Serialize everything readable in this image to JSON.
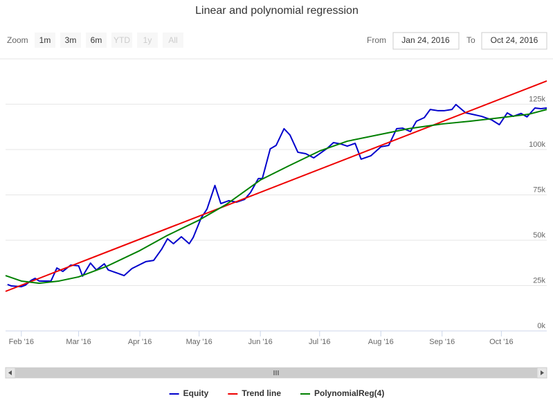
{
  "chart_data": {
    "type": "line",
    "title": "Linear and polynomial regression",
    "zoom_label": "Zoom",
    "zoom_buttons": [
      "1m",
      "3m",
      "6m",
      "YTD",
      "1y",
      "All"
    ],
    "from_label": "From",
    "from": "Jan 24, 2016",
    "to_label": "To",
    "to": "Oct 24, 2016",
    "xlim": [
      "2016-01-24",
      "2016-10-24"
    ],
    "xticks": [
      {
        "value": "2016-02-01",
        "label": "Feb '16"
      },
      {
        "value": "2016-03-01",
        "label": "Mar '16"
      },
      {
        "value": "2016-04-01",
        "label": "Apr '16"
      },
      {
        "value": "2016-05-01",
        "label": "May '16"
      },
      {
        "value": "2016-06-01",
        "label": "Jun '16"
      },
      {
        "value": "2016-07-01",
        "label": "Jul '16"
      },
      {
        "value": "2016-08-01",
        "label": "Aug '16"
      },
      {
        "value": "2016-09-01",
        "label": "Sep '16"
      },
      {
        "value": "2016-10-01",
        "label": "Oct '16"
      }
    ],
    "ylim": [
      0,
      150000
    ],
    "yticks": [
      {
        "value": 0,
        "label": "0k"
      },
      {
        "value": 25000,
        "label": "25k"
      },
      {
        "value": 50000,
        "label": "50k"
      },
      {
        "value": 75000,
        "label": "75k"
      },
      {
        "value": 100000,
        "label": "100k"
      },
      {
        "value": 125000,
        "label": "125k"
      }
    ],
    "grid": true,
    "legend": "bottom",
    "series": [
      {
        "name": "Equity",
        "color": "#0000cc",
        "x": [
          "2016-01-25",
          "2016-01-27",
          "2016-02-01",
          "2016-02-03",
          "2016-02-06",
          "2016-02-08",
          "2016-02-10",
          "2016-02-16",
          "2016-02-19",
          "2016-02-22",
          "2016-02-26",
          "2016-03-01",
          "2016-03-03",
          "2016-03-07",
          "2016-03-10",
          "2016-03-14",
          "2016-03-16",
          "2016-03-21",
          "2016-03-24",
          "2016-03-28",
          "2016-04-04",
          "2016-04-08",
          "2016-04-12",
          "2016-04-15",
          "2016-04-18",
          "2016-04-22",
          "2016-04-26",
          "2016-04-28",
          "2016-05-02",
          "2016-05-05",
          "2016-05-09",
          "2016-05-12",
          "2016-05-16",
          "2016-05-20",
          "2016-05-24",
          "2016-05-27",
          "2016-05-31",
          "2016-06-02",
          "2016-06-06",
          "2016-06-09",
          "2016-06-13",
          "2016-06-16",
          "2016-06-20",
          "2016-06-24",
          "2016-06-28",
          "2016-07-01",
          "2016-07-05",
          "2016-07-08",
          "2016-07-12",
          "2016-07-15",
          "2016-07-19",
          "2016-07-22",
          "2016-07-27",
          "2016-08-01",
          "2016-08-05",
          "2016-08-09",
          "2016-08-12",
          "2016-08-16",
          "2016-08-19",
          "2016-08-23",
          "2016-08-26",
          "2016-08-30",
          "2016-09-02",
          "2016-09-06",
          "2016-09-08",
          "2016-09-13",
          "2016-09-16",
          "2016-09-21",
          "2016-09-26",
          "2016-09-30",
          "2016-10-04",
          "2016-10-07",
          "2016-10-11",
          "2016-10-14",
          "2016-10-18",
          "2016-10-21",
          "2016-10-24"
        ],
        "values": [
          25600,
          24800,
          24400,
          25200,
          27900,
          29000,
          27500,
          27500,
          34700,
          32800,
          36300,
          35900,
          30200,
          37400,
          33600,
          37000,
          33600,
          31700,
          30500,
          34400,
          38200,
          38900,
          45000,
          50800,
          48100,
          51900,
          48100,
          51500,
          62200,
          67200,
          80200,
          70200,
          71800,
          71000,
          72500,
          76300,
          84000,
          84000,
          100400,
          102300,
          111500,
          108000,
          98500,
          97700,
          95400,
          97700,
          100800,
          103800,
          103000,
          101900,
          103400,
          94700,
          96600,
          101500,
          102300,
          111500,
          111800,
          109900,
          115600,
          117600,
          122100,
          121400,
          121400,
          122100,
          124800,
          120200,
          119500,
          118300,
          116400,
          113700,
          120200,
          118300,
          119900,
          118000,
          122900,
          122500,
          122900
        ]
      },
      {
        "name": "Trend line",
        "color": "#ee0000",
        "x": [
          "2016-01-24",
          "2016-10-24"
        ],
        "values": [
          21800,
          137800
        ]
      },
      {
        "name": "PolynomialReg(4)",
        "color": "#008000",
        "x": [
          "2016-01-24",
          "2016-02-01",
          "2016-02-10",
          "2016-02-20",
          "2016-03-01",
          "2016-03-15",
          "2016-04-01",
          "2016-04-15",
          "2016-05-01",
          "2016-05-15",
          "2016-06-01",
          "2016-06-15",
          "2016-07-01",
          "2016-07-15",
          "2016-08-01",
          "2016-08-15",
          "2016-09-01",
          "2016-09-15",
          "2016-10-01",
          "2016-10-15",
          "2016-10-24"
        ],
        "values": [
          30500,
          27500,
          26300,
          27500,
          29800,
          35500,
          44300,
          52700,
          61100,
          69900,
          83200,
          90800,
          99200,
          104600,
          108400,
          111500,
          114100,
          115600,
          117600,
          119500,
          122100
        ]
      }
    ]
  }
}
